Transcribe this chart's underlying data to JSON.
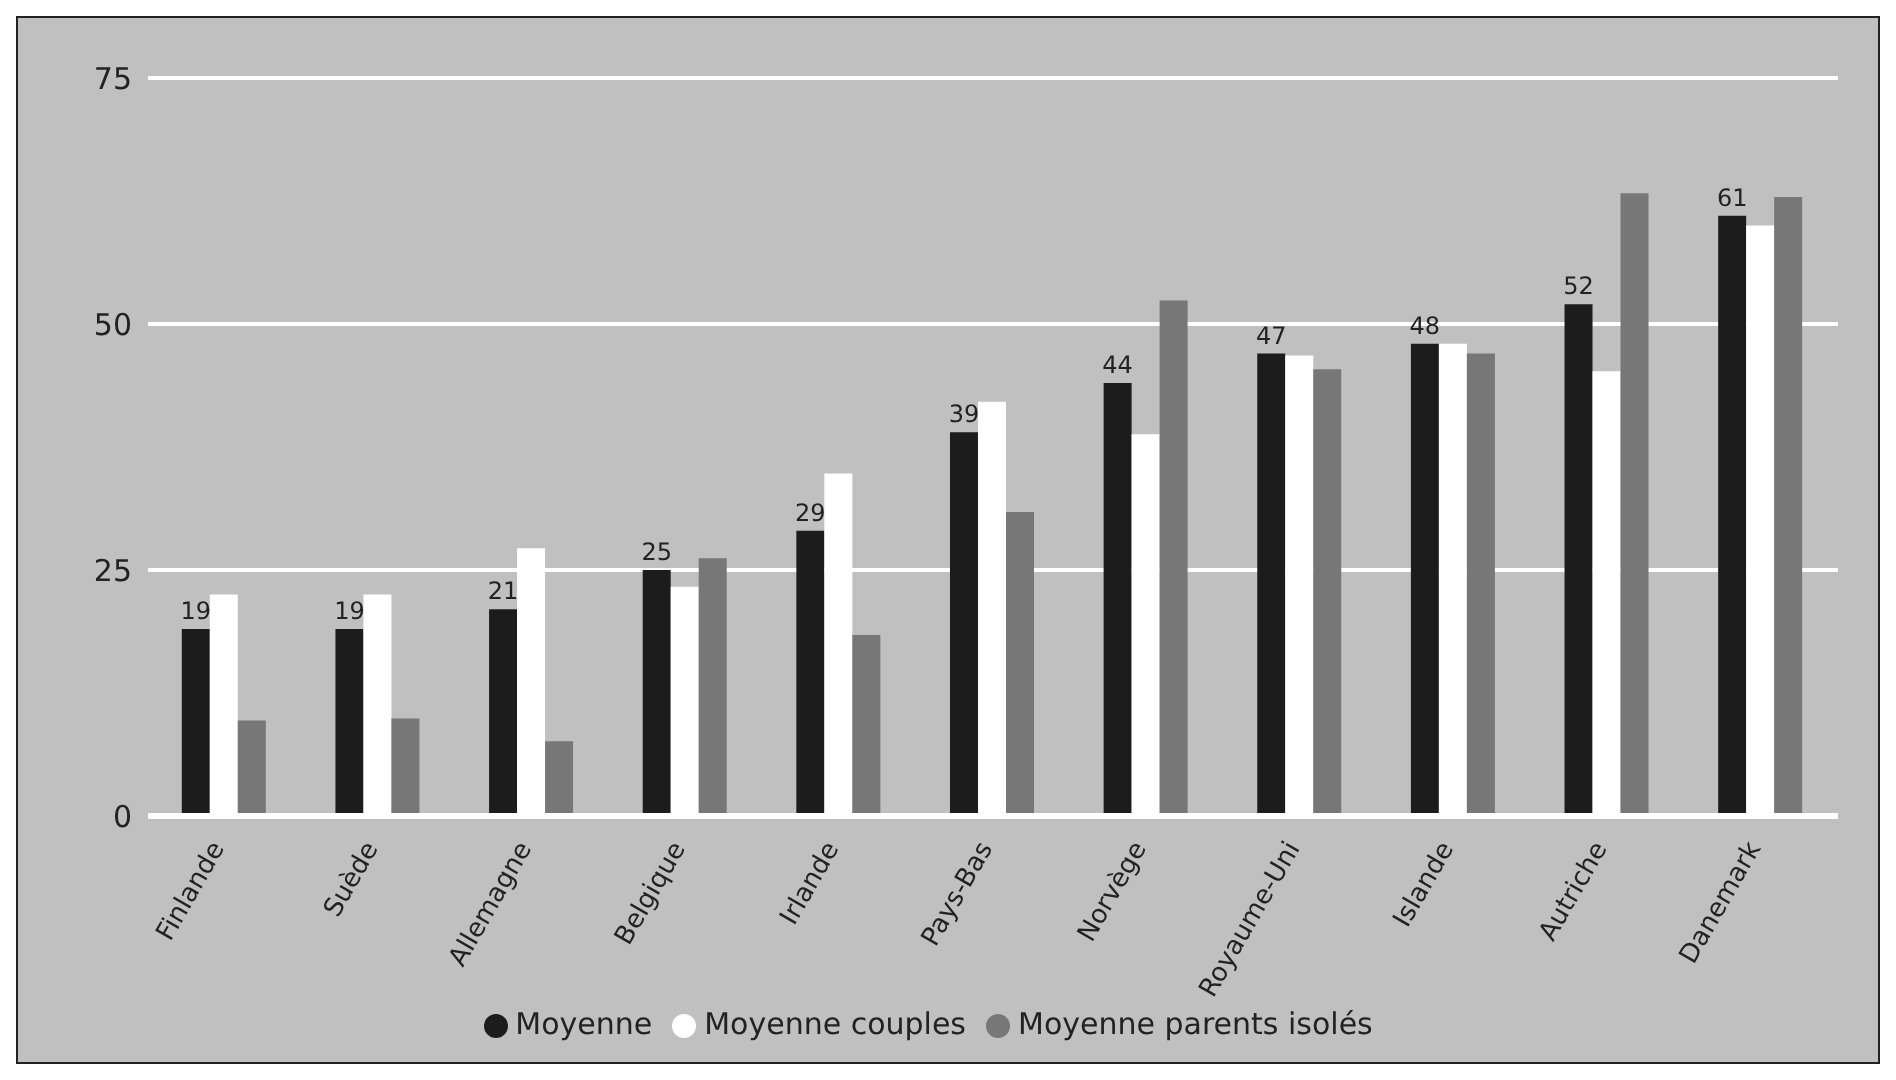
{
  "chart_data": {
    "type": "bar",
    "categories": [
      "Finlande",
      "Suède",
      "Allemagne",
      "Belgique",
      "Irlande",
      "Pays-Bas",
      "Norvège",
      "Royaume-Uni",
      "Islande",
      "Autriche",
      "Danemark"
    ],
    "series": [
      {
        "name": "Moyenne",
        "color": "#1c1c1c",
        "values": [
          19,
          19,
          21,
          25,
          29,
          39,
          44,
          47,
          48,
          52,
          61
        ],
        "value_labels": [
          "19",
          "19",
          "21",
          "25",
          "29",
          "39",
          "44",
          "47",
          "48",
          "52",
          "61"
        ]
      },
      {
        "name": "Moyenne couples",
        "color": "#ffffff",
        "values": [
          22.5,
          22.5,
          27.2,
          23.3,
          34.8,
          42.1,
          38.8,
          46.8,
          48,
          45.2,
          60
        ]
      },
      {
        "name": "Moyenne parents isolés",
        "color": "#777777",
        "values": [
          9.7,
          9.9,
          7.6,
          26.2,
          18.4,
          30.9,
          52.4,
          45.4,
          47,
          63.3,
          62.9
        ]
      }
    ],
    "ylim": [
      0,
      75
    ],
    "yticks": [
      0,
      25,
      50,
      75
    ],
    "grid": "y",
    "legend": "bottom"
  }
}
